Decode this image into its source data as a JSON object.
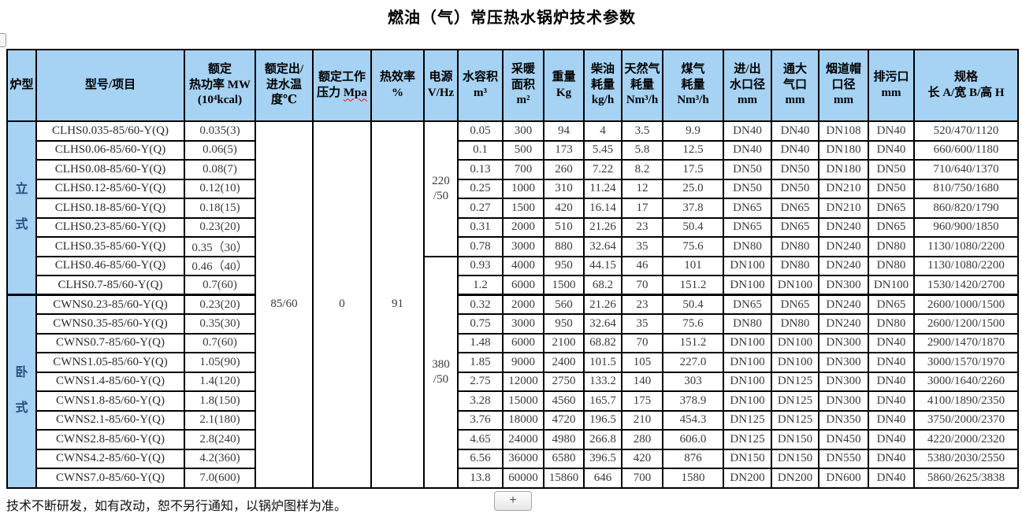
{
  "title": "燃油（气）常压热水锅炉技术参数",
  "note": "技术不断研发，如有改动，恕不另行通知，以锅炉图样为准。",
  "controls": {
    "add_button": "+"
  },
  "colors": {
    "header_bg": "#a6d2f3",
    "border": "#000000",
    "furnace_text": "#2b4d80",
    "squiggle": "#ff0000"
  },
  "table": {
    "headers": [
      {
        "t": "炉型"
      },
      {
        "t": "型号/项目"
      },
      {
        "t": "额定\n热功率 MW\n(10⁴kcal)"
      },
      {
        "t": "额定出/\n进水温\n度℃"
      },
      {
        "t": "额定工作\n压力 ",
        "u": "Mpa"
      },
      {
        "t": "热效率\n%"
      },
      {
        "t": "电源\nV/Hz"
      },
      {
        "t": "水容积\nm³"
      },
      {
        "t": "采暖\n面积\nm²"
      },
      {
        "t": "重量\nKg"
      },
      {
        "t": "柴油\n耗量\nkg/h"
      },
      {
        "t": "天然气\n耗量\nNm³/h"
      },
      {
        "t": "煤气\n耗量\nNm³/h"
      },
      {
        "t": "进/出\n水口径\nmm"
      },
      {
        "t": "通大\n气口\nmm"
      },
      {
        "t": "烟道帽\n口径\nmm"
      },
      {
        "t": "排污口\nmm"
      },
      {
        "t": "规格\n长 A/宽 B/高 H"
      }
    ],
    "furnace_types": [
      {
        "label": "立\n式",
        "rowspan": 9
      },
      {
        "label": "卧\n式",
        "rowspan": 10
      }
    ],
    "merged": {
      "water_temp": "85/60",
      "pressure": "0",
      "efficiency": "91"
    },
    "power_supply": [
      {
        "label": "220\n/50",
        "rowspan": 7
      },
      {
        "label": "380\n/50",
        "rowspan": 12
      }
    ],
    "rows": [
      {
        "model": "CLHS0.035-85/60-Y(Q)",
        "power": "0.035(3)",
        "volume": "0.05",
        "area": "300",
        "weight": "94",
        "diesel": "4",
        "natural_gas": "3.5",
        "coal_gas": "9.9",
        "inlet_outlet": "DN40",
        "vent": "DN40",
        "chimney": "DN108",
        "drain": "DN40",
        "dims": "520/470/1120"
      },
      {
        "model": "CLHS0.06-85/60-Y(Q)",
        "power": "0.06(5)",
        "volume": "0.1",
        "area": "500",
        "weight": "173",
        "diesel": "5.45",
        "natural_gas": "5.8",
        "coal_gas": "12.5",
        "inlet_outlet": "DN40",
        "vent": "DN40",
        "chimney": "DN180",
        "drain": "DN40",
        "dims": "660/600/1180"
      },
      {
        "model": "CLHS0.08-85/60-Y(Q)",
        "power": "0.08(7)",
        "volume": "0.13",
        "area": "700",
        "weight": "260",
        "diesel": "7.22",
        "natural_gas": "8.2",
        "coal_gas": "17.5",
        "inlet_outlet": "DN50",
        "vent": "DN50",
        "chimney": "DN180",
        "drain": "DN50",
        "dims": "710/640/1370"
      },
      {
        "model": "CLHS0.12-85/60-Y(Q)",
        "power": "0.12(10)",
        "volume": "0.25",
        "area": "1000",
        "weight": "310",
        "diesel": "11.24",
        "natural_gas": "12",
        "coal_gas": "25.0",
        "inlet_outlet": "DN50",
        "vent": "DN50",
        "chimney": "DN210",
        "drain": "DN50",
        "dims": "810/750/1680"
      },
      {
        "model": "CLHS0.18-85/60-Y(Q)",
        "power": "0.18(15)",
        "volume": "0.27",
        "area": "1500",
        "weight": "420",
        "diesel": "16.14",
        "natural_gas": "17",
        "coal_gas": "37.8",
        "inlet_outlet": "DN65",
        "vent": "DN65",
        "chimney": "DN210",
        "drain": "DN65",
        "dims": "860/820/1790"
      },
      {
        "model": "CLHS0.23-85/60-Y(Q)",
        "power": "0.23(20)",
        "volume": "0.31",
        "area": "2000",
        "weight": "510",
        "diesel": "21.26",
        "natural_gas": "23",
        "coal_gas": "50.4",
        "inlet_outlet": "DN65",
        "vent": "DN65",
        "chimney": "DN240",
        "drain": "DN65",
        "dims": "960/900/1850"
      },
      {
        "model": "CLHS0.35-85/60-Y(Q)",
        "power": "0.35（30）",
        "volume": "0.78",
        "area": "3000",
        "weight": "880",
        "diesel": "32.64",
        "natural_gas": "35",
        "coal_gas": "75.6",
        "inlet_outlet": "DN80",
        "vent": "DN80",
        "chimney": "DN240",
        "drain": "DN80",
        "dims": "1130/1080/2200"
      },
      {
        "model": "CLHS0.46-85/60-Y(Q)",
        "power": "0.46（40）",
        "volume": "0.93",
        "area": "4000",
        "weight": "950",
        "diesel": "44.15",
        "natural_gas": "46",
        "coal_gas": "101",
        "inlet_outlet": "DN100",
        "vent": "DN80",
        "chimney": "DN240",
        "drain": "DN80",
        "dims": "1130/1080/2200"
      },
      {
        "model": "CLHS0.7-85/60-Y(Q)",
        "power": "0.7(60)",
        "volume": "1.2",
        "area": "6000",
        "weight": "1500",
        "diesel": "68.2",
        "natural_gas": "70",
        "coal_gas": "151.2",
        "inlet_outlet": "DN100",
        "vent": "DN100",
        "chimney": "DN300",
        "drain": "DN100",
        "dims": "1530/1420/2700"
      },
      {
        "model": "CWNS0.23-85/60-Y(Q)",
        "power": "0.23(20)",
        "volume": "0.32",
        "area": "2000",
        "weight": "560",
        "diesel": "21.26",
        "natural_gas": "23",
        "coal_gas": "50.4",
        "inlet_outlet": "DN65",
        "vent": "DN65",
        "chimney": "DN240",
        "drain": "DN65",
        "dims": "2600/1000/1500"
      },
      {
        "model": "CWNS0.35-85/60-Y(Q)",
        "power": "0.35(30)",
        "volume": "0.75",
        "area": "3000",
        "weight": "950",
        "diesel": "32.64",
        "natural_gas": "35",
        "coal_gas": "75.6",
        "inlet_outlet": "DN80",
        "vent": "DN80",
        "chimney": "DN240",
        "drain": "DN80",
        "dims": "2600/1200/1500"
      },
      {
        "model": "CWNS0.7-85/60-Y(Q)",
        "power": "0.7(60)",
        "volume": "1.48",
        "area": "6000",
        "weight": "2100",
        "diesel": "68.82",
        "natural_gas": "70",
        "coal_gas": "151.2",
        "inlet_outlet": "DN100",
        "vent": "DN100",
        "chimney": "DN300",
        "drain": "DN40",
        "dims": "2900/1470/1870"
      },
      {
        "model": "CWNS1.05-85/60-Y(Q)",
        "power": "1.05(90)",
        "volume": "1.85",
        "area": "9000",
        "weight": "2400",
        "diesel": "101.5",
        "natural_gas": "105",
        "coal_gas": "227.0",
        "inlet_outlet": "DN100",
        "vent": "DN100",
        "chimney": "DN300",
        "drain": "DN40",
        "dims": "3000/1570/1970"
      },
      {
        "model": "CWNS1.4-85/60-Y(Q)",
        "power": "1.4(120)",
        "volume": "2.75",
        "area": "12000",
        "weight": "2750",
        "diesel": "133.2",
        "natural_gas": "140",
        "coal_gas": "303",
        "inlet_outlet": "DN100",
        "vent": "DN125",
        "chimney": "DN300",
        "drain": "DN40",
        "dims": "3000/1640/2260"
      },
      {
        "model": "CWNS1.8-85/60-Y(Q)",
        "power": "1.8(150)",
        "volume": "3.28",
        "area": "15000",
        "weight": "4560",
        "diesel": "165.7",
        "natural_gas": "175",
        "coal_gas": "378.9",
        "inlet_outlet": "DN100",
        "vent": "DN125",
        "chimney": "DN300",
        "drain": "DN40",
        "dims": "4100/1890/2350"
      },
      {
        "model": "CWNS2.1-85/60-Y(Q)",
        "power": "2.1(180)",
        "volume": "3.76",
        "area": "18000",
        "weight": "4720",
        "diesel": "196.5",
        "natural_gas": "210",
        "coal_gas": "454.3",
        "inlet_outlet": "DN125",
        "vent": "DN125",
        "chimney": "DN350",
        "drain": "DN40",
        "dims": "3750/2000/2370"
      },
      {
        "model": "CWNS2.8-85/60-Y(Q)",
        "power": "2.8(240)",
        "volume": "4.65",
        "area": "24000",
        "weight": "4980",
        "diesel": "266.8",
        "natural_gas": "280",
        "coal_gas": "606.0",
        "inlet_outlet": "DN125",
        "vent": "DN150",
        "chimney": "DN450",
        "drain": "DN40",
        "dims": "4220/2000/2320"
      },
      {
        "model": "CWNS4.2-85/60-Y(Q)",
        "power": "4.2(360)",
        "volume": "6.56",
        "area": "36000",
        "weight": "6580",
        "diesel": "396.5",
        "natural_gas": "420",
        "coal_gas": "876",
        "inlet_outlet": "DN150",
        "vent": "DN150",
        "chimney": "DN550",
        "drain": "DN40",
        "dims": "5380/2030/2550"
      },
      {
        "model": "CWNS7.0-85/60-Y(Q)",
        "power": "7.0(600)",
        "volume": "13.8",
        "area": "60000",
        "weight": "15860",
        "diesel": "646",
        "natural_gas": "700",
        "coal_gas": "1580",
        "inlet_outlet": "DN200",
        "vent": "DN200",
        "chimney": "DN600",
        "drain": "DN40",
        "dims": "5860/2625/3838"
      }
    ]
  }
}
